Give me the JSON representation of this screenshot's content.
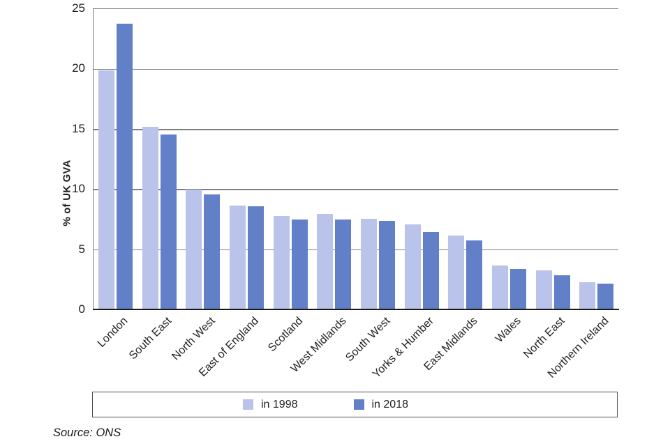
{
  "chart_data": {
    "type": "bar",
    "title": "",
    "xlabel": "",
    "ylabel": "% of UK GVA",
    "ylim": [
      0,
      25
    ],
    "yticks": [
      0,
      5,
      10,
      15,
      20,
      25
    ],
    "grid": true,
    "legend_position": "bottom",
    "categories": [
      "London",
      "South East",
      "North West",
      "East of England",
      "Scotland",
      "West Midlands",
      "South West",
      "Yorks & Humber",
      "East Midlands",
      "Wales",
      "North East",
      "Northern Ireland"
    ],
    "series": [
      {
        "name": "in 1998",
        "color": "#bac3e9",
        "values": [
          19.9,
          15.2,
          10.0,
          8.7,
          7.8,
          8.0,
          7.6,
          7.1,
          6.2,
          3.7,
          3.3,
          2.3
        ]
      },
      {
        "name": "in 2018",
        "color": "#6280c8",
        "values": [
          23.8,
          14.6,
          9.6,
          8.6,
          7.5,
          7.5,
          7.4,
          6.5,
          5.8,
          3.4,
          2.9,
          2.2
        ]
      }
    ],
    "colors": {
      "gridline": "#7f7f7f",
      "axis_line": "#1a1a1a",
      "text": "#1f1f1f"
    }
  },
  "source_note": "Source: ONS"
}
